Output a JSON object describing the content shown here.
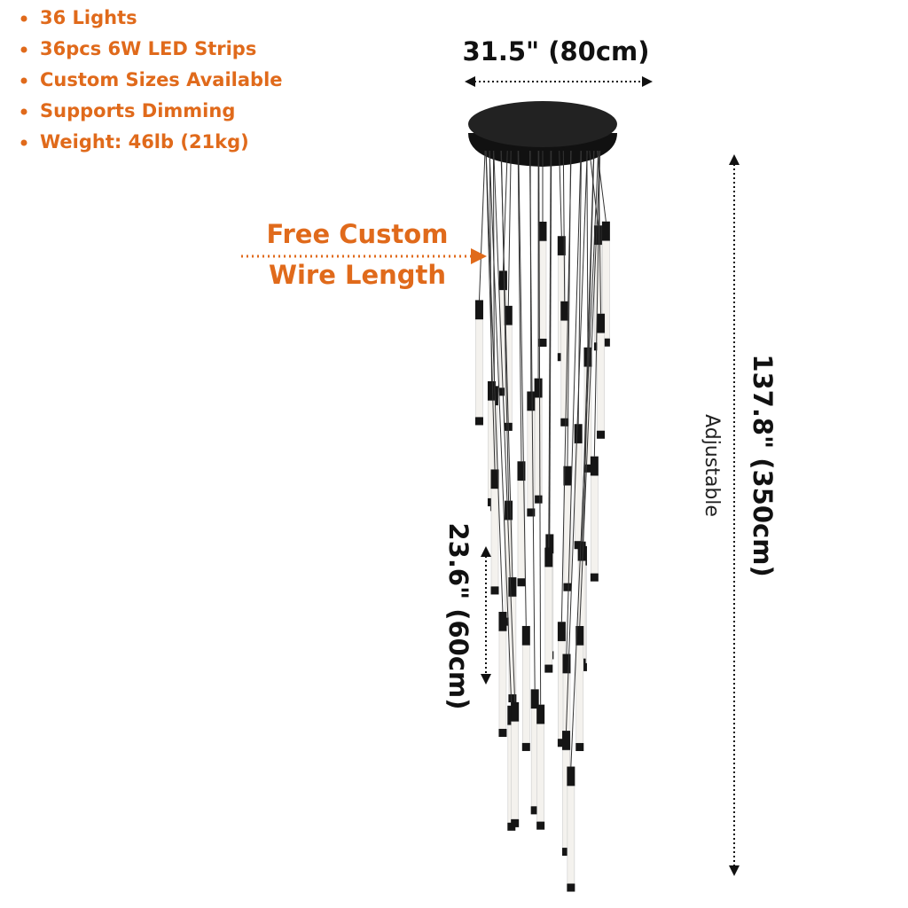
{
  "features": [
    "36 Lights",
    "36pcs 6W LED Strips",
    "Custom Sizes Available",
    "Supports Dimming",
    "Weight: 46lb (21kg)"
  ],
  "width_label": "31.5\" (80cm)",
  "callout": [
    "Free Custom",
    "Wire Length"
  ],
  "height_label": "137.8\" (350cm)",
  "height_note": "Adjustable",
  "tube_label": "23.6\" (60cm)"
}
